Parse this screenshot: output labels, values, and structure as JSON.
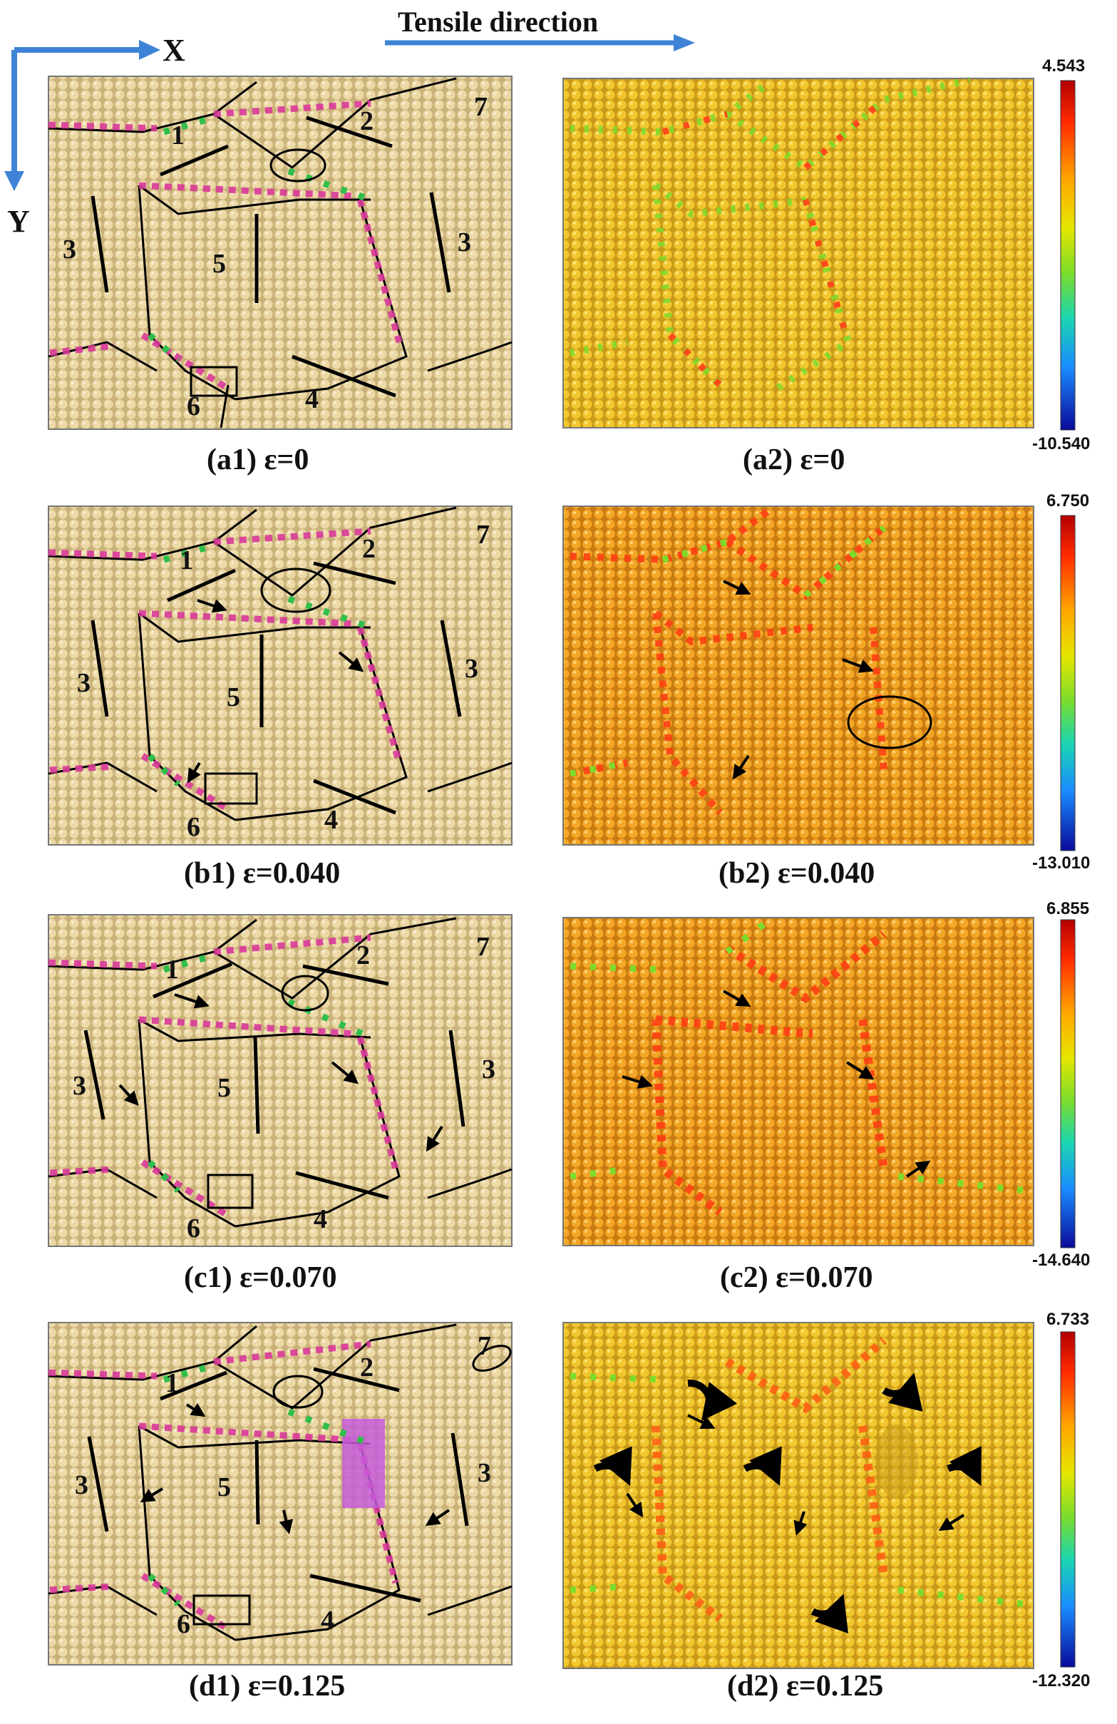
{
  "header": {
    "tensile_direction": "Tensile direction"
  },
  "axes": {
    "x_label": "X",
    "y_label": "Y"
  },
  "colors": {
    "atom_bulk": "#e8d29a",
    "atom_gb_magenta": "#d9399a",
    "atom_gb_green": "#2fbf4a",
    "atom_gb_blue": "#3a6fd8",
    "axis_arrow": "#3f83d6",
    "boundary_line": "#000000"
  },
  "panels": [
    {
      "id": "a1",
      "caption": "(a1) ε=0",
      "kind": "structure",
      "grains": [
        "1",
        "2",
        "7",
        "3",
        "5",
        "3",
        "6",
        "4"
      ]
    },
    {
      "id": "a2",
      "caption": "(a2) ε=0",
      "kind": "stress",
      "scale_max": "4.543",
      "scale_min": "-10.540"
    },
    {
      "id": "b1",
      "caption": "(b1) ε=0.040",
      "kind": "structure",
      "grains": [
        "1",
        "2",
        "7",
        "3",
        "5",
        "3",
        "6",
        "4"
      ]
    },
    {
      "id": "b2",
      "caption": "(b2) ε=0.040",
      "kind": "stress",
      "scale_max": "6.750",
      "scale_min": "-13.010"
    },
    {
      "id": "c1",
      "caption": "(c1) ε=0.070",
      "kind": "structure",
      "grains": [
        "1",
        "2",
        "7",
        "3",
        "5",
        "3",
        "6",
        "4"
      ]
    },
    {
      "id": "c2",
      "caption": "(c2) ε=0.070",
      "kind": "stress",
      "scale_max": "6.855",
      "scale_min": "-14.640"
    },
    {
      "id": "d1",
      "caption": "(d1) ε=0.125",
      "kind": "structure",
      "grains": [
        "1",
        "2",
        "7",
        "3",
        "5",
        "3",
        "6",
        "4"
      ]
    },
    {
      "id": "d2",
      "caption": "(d2) ε=0.125",
      "kind": "stress",
      "scale_max": "6.733",
      "scale_min": "-12.320"
    }
  ]
}
